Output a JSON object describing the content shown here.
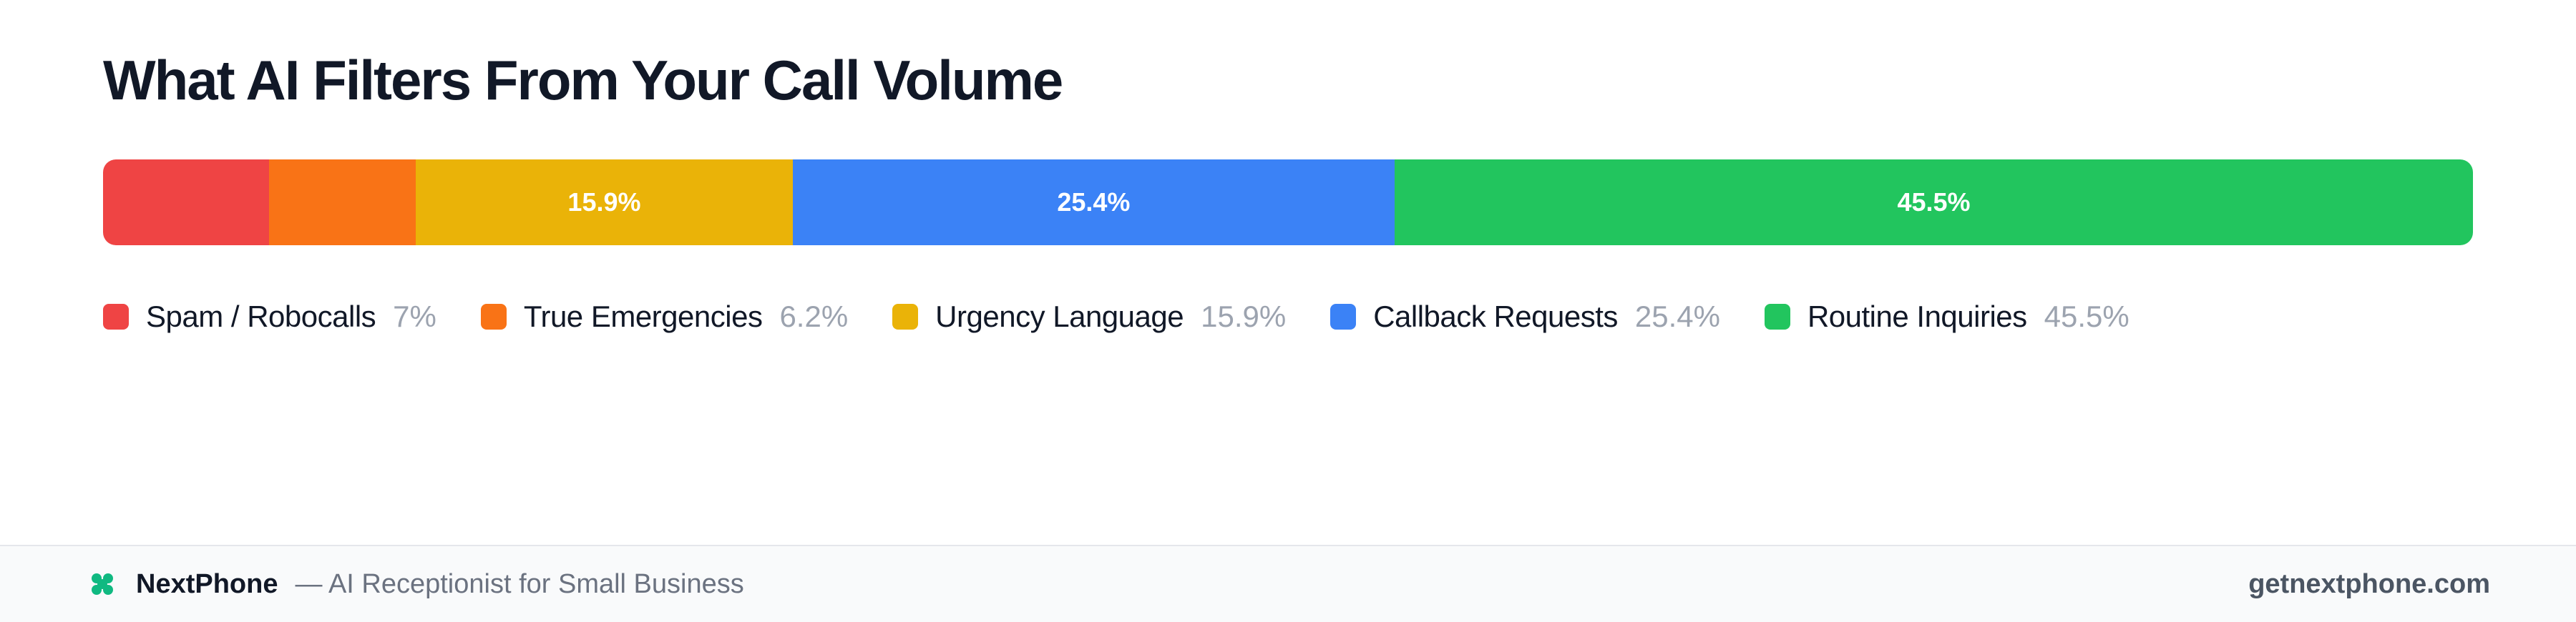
{
  "chart_data": {
    "type": "bar",
    "orientation": "horizontal-stacked",
    "title": "What AI Filters From Your Call Volume",
    "unit": "%",
    "series": [
      {
        "name": "Spam / Robocalls",
        "value": 7,
        "value_label": "7%",
        "bar_label": "",
        "color": "#ef4444"
      },
      {
        "name": "True Emergencies",
        "value": 6.2,
        "value_label": "6.2%",
        "bar_label": "",
        "color": "#f97316"
      },
      {
        "name": "Urgency Language",
        "value": 15.9,
        "value_label": "15.9%",
        "bar_label": "15.9%",
        "color": "#eab308"
      },
      {
        "name": "Callback Requests",
        "value": 25.4,
        "value_label": "25.4%",
        "bar_label": "25.4%",
        "color": "#3b82f6"
      },
      {
        "name": "Routine Inquiries",
        "value": 45.5,
        "value_label": "45.5%",
        "bar_label": "45.5%",
        "color": "#22c55e"
      }
    ],
    "legend_position": "below"
  },
  "footer": {
    "brand_name": "NextPhone",
    "tagline": "— AI Receptionist for Small Business",
    "website": "getnextphone.com",
    "brand_icon": "clover-icon",
    "brand_color": "#10b981"
  }
}
